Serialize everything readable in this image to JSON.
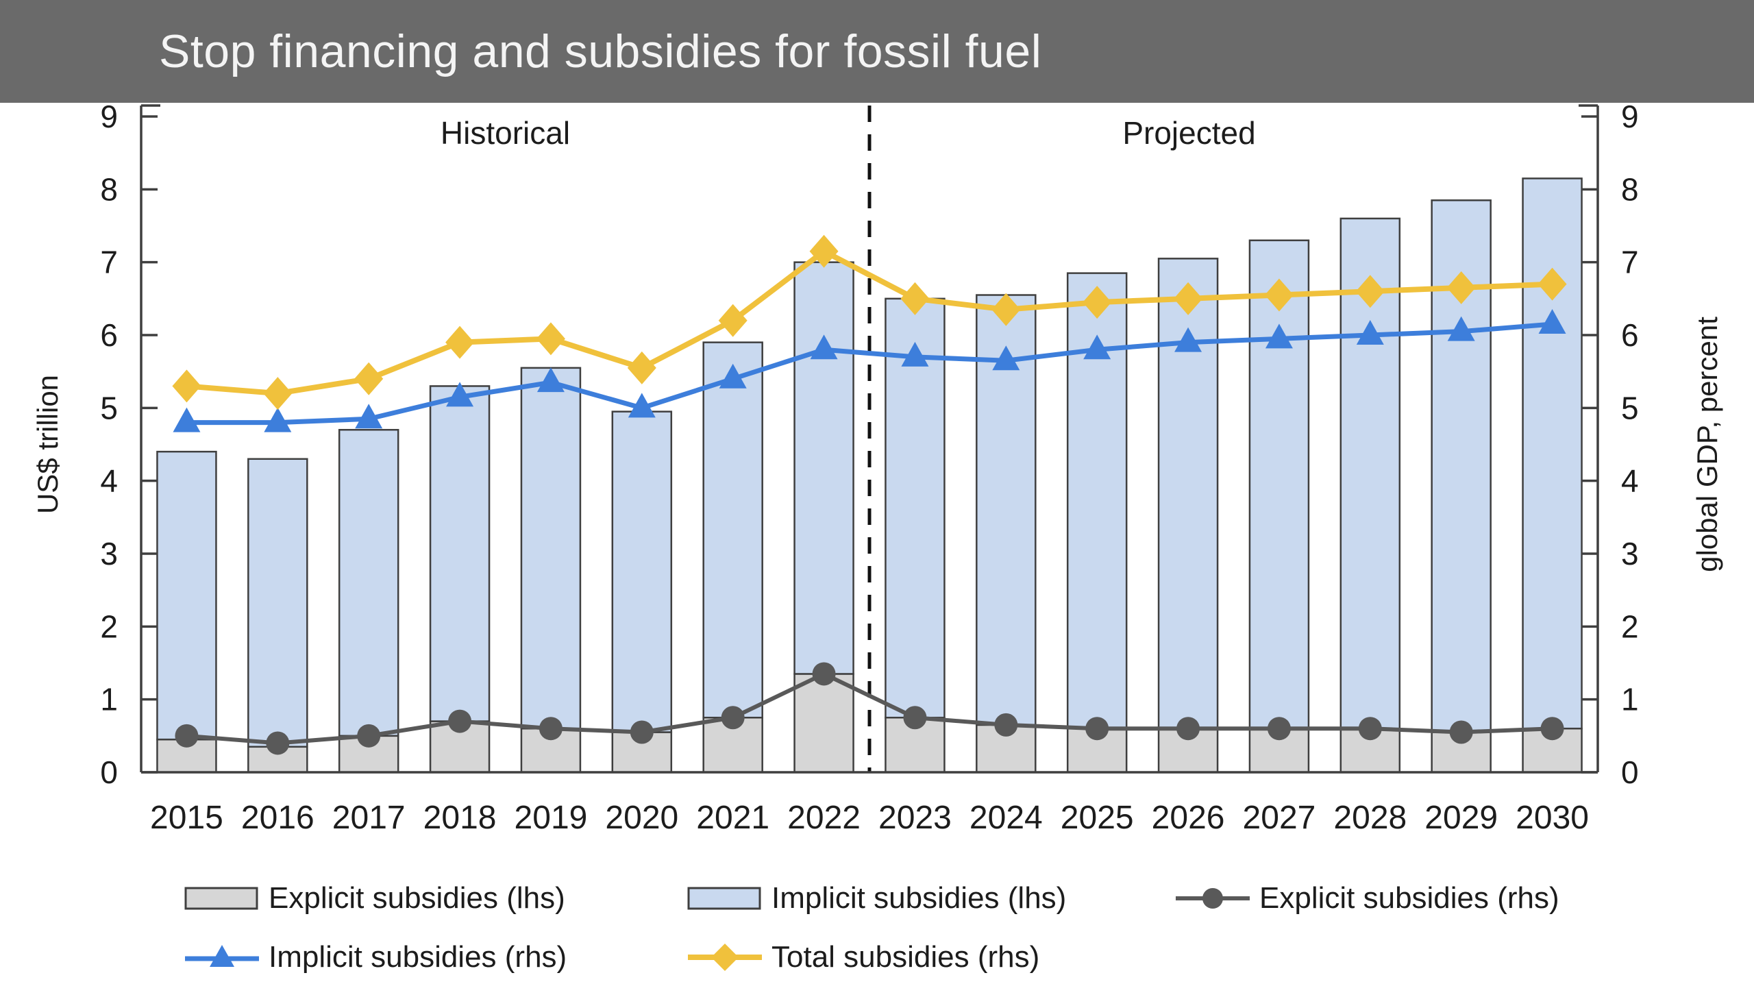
{
  "header": {
    "title": "Stop financing and subsidies for fossil fuel",
    "bg_color": "#6a6a6a",
    "text_color": "#f4f4f4"
  },
  "chart_data": {
    "type": "bar",
    "subtype": "stacked-bars-with-lines",
    "categories": [
      "2015",
      "2016",
      "2017",
      "2018",
      "2019",
      "2020",
      "2021",
      "2022",
      "2023",
      "2024",
      "2025",
      "2026",
      "2027",
      "2028",
      "2029",
      "2030"
    ],
    "bar_series": [
      {
        "name": "Explicit subsidies (lhs)",
        "axis": "left",
        "stack": "subsidies",
        "color": "#d6d6d6",
        "values": [
          0.45,
          0.35,
          0.5,
          0.7,
          0.6,
          0.55,
          0.75,
          1.35,
          0.75,
          0.65,
          0.6,
          0.6,
          0.6,
          0.6,
          0.55,
          0.6
        ]
      },
      {
        "name": "Implicit subsidies (lhs)",
        "axis": "left",
        "stack": "subsidies",
        "color": "#c9d9ef",
        "values": [
          3.95,
          3.95,
          4.2,
          4.6,
          4.95,
          4.4,
          5.15,
          5.65,
          5.75,
          5.9,
          6.25,
          6.45,
          6.7,
          7.0,
          7.3,
          7.55
        ]
      }
    ],
    "line_series": [
      {
        "name": "Explicit subsidies (rhs)",
        "axis": "right",
        "marker": "circle",
        "color": "#595959",
        "width": 6,
        "values": [
          0.5,
          0.4,
          0.5,
          0.7,
          0.6,
          0.55,
          0.75,
          1.35,
          0.75,
          0.65,
          0.6,
          0.6,
          0.6,
          0.6,
          0.55,
          0.6
        ]
      },
      {
        "name": "Implicit subsidies (rhs)",
        "axis": "right",
        "marker": "triangle",
        "color": "#3d7edb",
        "width": 7,
        "values": [
          4.8,
          4.8,
          4.85,
          5.15,
          5.35,
          5.0,
          5.4,
          5.8,
          5.7,
          5.65,
          5.8,
          5.9,
          5.95,
          6.0,
          6.05,
          6.15
        ]
      },
      {
        "name": "Total subsidies (rhs)",
        "axis": "right",
        "marker": "diamond",
        "color": "#f0c13c",
        "width": 8,
        "values": [
          5.3,
          5.2,
          5.4,
          5.9,
          5.95,
          5.55,
          6.2,
          7.15,
          6.5,
          6.35,
          6.45,
          6.5,
          6.55,
          6.6,
          6.65,
          6.7
        ]
      }
    ],
    "ylabel_left": "US$ trillion",
    "ylabel_right": "global GDP, percent",
    "ylim": [
      0,
      9
    ],
    "yticks": [
      0,
      1,
      2,
      3,
      4,
      5,
      6,
      7,
      8,
      9
    ],
    "grid": false,
    "annotations": [
      {
        "text": "Historical",
        "region": "left"
      },
      {
        "text": "Projected",
        "region": "right"
      }
    ],
    "divider": {
      "after_category": "2022",
      "style": "dashed",
      "color": "#111111"
    },
    "frame_color": "#3f3f3f",
    "legend_position": "bottom-left"
  }
}
